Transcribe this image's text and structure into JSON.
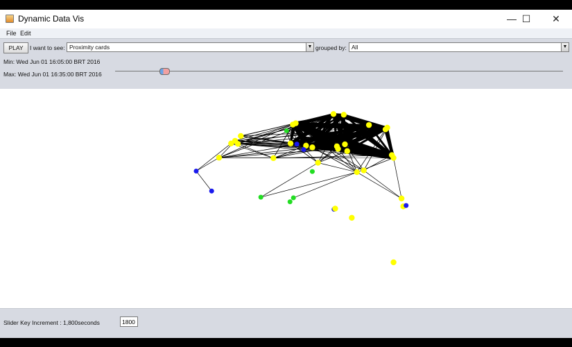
{
  "window": {
    "title": "Dynamic Data Vis",
    "icon": "java-cup-icon",
    "controls": {
      "minimize": "—",
      "maximize": "☐",
      "close": "✕"
    }
  },
  "menubar": {
    "items": [
      "File",
      "Edit"
    ]
  },
  "toolbar": {
    "play_label": "PLAY",
    "see_label": "I want to see:",
    "see_value": "Proximity cards",
    "group_label": "grouped by:",
    "group_value": "All",
    "min_label": "Min: Wed Jun 01 16:05:00 BRT 2016",
    "max_label": "Max: Wed Jun 01 16:35:00 BRT 2016",
    "slider_position": 0.11
  },
  "footer": {
    "increment_label": "Slider Key Increment : 1,800seconds",
    "increment_value": "1800"
  },
  "graph": {
    "colors": {
      "yellow": "#ffff00",
      "green": "#22dd22",
      "blue": "#1a1aee",
      "edge": "#000000"
    },
    "nodes": [
      [
        "yellow",
        0.583,
        0.115
      ],
      [
        "yellow",
        0.601,
        0.118
      ],
      [
        "yellow",
        0.512,
        0.163
      ],
      [
        "yellow",
        0.517,
        0.157
      ],
      [
        "yellow",
        0.645,
        0.165
      ],
      [
        "yellow",
        0.677,
        0.177
      ],
      [
        "yellow",
        0.674,
        0.185
      ],
      [
        "green",
        0.501,
        0.191
      ],
      [
        "yellow",
        0.421,
        0.215
      ],
      [
        "yellow",
        0.411,
        0.237
      ],
      [
        "yellow",
        0.404,
        0.249
      ],
      [
        "yellow",
        0.416,
        0.251
      ],
      [
        "yellow",
        0.508,
        0.249
      ],
      [
        "blue",
        0.519,
        0.252
      ],
      [
        "yellow",
        0.535,
        0.259
      ],
      [
        "yellow",
        0.546,
        0.267
      ],
      [
        "blue",
        0.531,
        0.277
      ],
      [
        "yellow",
        0.589,
        0.262
      ],
      [
        "yellow",
        0.603,
        0.253
      ],
      [
        "yellow",
        0.591,
        0.274
      ],
      [
        "yellow",
        0.607,
        0.284
      ],
      [
        "yellow",
        0.685,
        0.302
      ],
      [
        "yellow",
        0.688,
        0.315
      ],
      [
        "yellow",
        0.383,
        0.314
      ],
      [
        "yellow",
        0.478,
        0.316
      ],
      [
        "yellow",
        0.556,
        0.337
      ],
      [
        "blue",
        0.343,
        0.375
      ],
      [
        "green",
        0.546,
        0.377
      ],
      [
        "yellow",
        0.624,
        0.38
      ],
      [
        "yellow",
        0.636,
        0.372
      ],
      [
        "blue",
        0.37,
        0.466
      ],
      [
        "green",
        0.456,
        0.494
      ],
      [
        "green",
        0.513,
        0.497
      ],
      [
        "green",
        0.507,
        0.515
      ],
      [
        "yellow",
        0.702,
        0.5
      ],
      [
        "yellow",
        0.705,
        0.536
      ],
      [
        "blue",
        0.71,
        0.532
      ],
      [
        "blue",
        0.584,
        0.549
      ],
      [
        "yellow",
        0.586,
        0.546
      ],
      [
        "yellow",
        0.615,
        0.588
      ],
      [
        "yellow",
        0.688,
        0.791
      ]
    ]
  }
}
